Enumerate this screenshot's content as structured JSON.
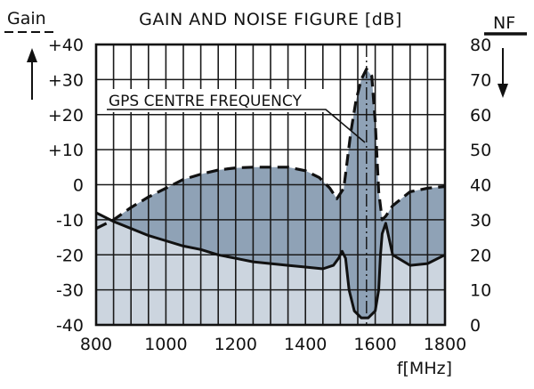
{
  "chart_data": {
    "type": "area",
    "title": "GAIN AND NOISE FIGURE [dB]",
    "xlabel": "f[MHz]",
    "ylabel_left": "Gain",
    "ylabel_right": "NF",
    "xlim": [
      800,
      1800
    ],
    "ylim_left": [
      -40,
      40
    ],
    "ylim_right": [
      0,
      80
    ],
    "x_ticks": [
      "800",
      "1000",
      "1200",
      "1400",
      "1600",
      "1800"
    ],
    "y_ticks_left": [
      "+40",
      "+30",
      "+20",
      "+10",
      "0",
      "-10",
      "-20",
      "-30",
      "-40"
    ],
    "y_ticks_right": [
      "80",
      "70",
      "60",
      "50",
      "40",
      "30",
      "20",
      "10",
      "0"
    ],
    "grid": true,
    "annotation": {
      "text": "GPS CENTRE FREQUENCY",
      "x": 1575
    },
    "series": [
      {
        "style": "dashed",
        "axis": "left",
        "x": [
          800,
          850,
          900,
          950,
          1000,
          1050,
          1100,
          1150,
          1200,
          1250,
          1300,
          1350,
          1400,
          1440,
          1470,
          1490,
          1510,
          1530,
          1545,
          1560,
          1575,
          1590,
          1600,
          1610,
          1620,
          1630,
          1650,
          1700,
          1750,
          1800
        ],
        "values": [
          -12.5,
          -10,
          -6.5,
          -3.5,
          -1,
          1.5,
          3,
          4.2,
          4.8,
          5,
          5,
          5,
          4,
          2,
          -1,
          -4,
          -1,
          15,
          24,
          30,
          33,
          31,
          18,
          -2,
          -10,
          -9,
          -6,
          -2,
          -1,
          -0.5
        ]
      },
      {
        "style": "solid",
        "axis": "left",
        "x": [
          800,
          850,
          900,
          950,
          1000,
          1050,
          1100,
          1150,
          1200,
          1250,
          1300,
          1350,
          1400,
          1450,
          1480,
          1495,
          1505,
          1515,
          1525,
          1540,
          1560,
          1580,
          1600,
          1610,
          1615,
          1620,
          1630,
          1650,
          1700,
          1750,
          1800
        ],
        "values": [
          -8,
          -10.5,
          -12.5,
          -14.5,
          -16,
          -17.5,
          -18.5,
          -20,
          -21,
          -22,
          -22.5,
          -23,
          -23.5,
          -24,
          -23,
          -21,
          -19,
          -21,
          -30,
          -36,
          -38,
          -38,
          -36,
          -30,
          -20,
          -14,
          -11,
          -20,
          -23,
          -22.5,
          -20
        ]
      }
    ]
  }
}
